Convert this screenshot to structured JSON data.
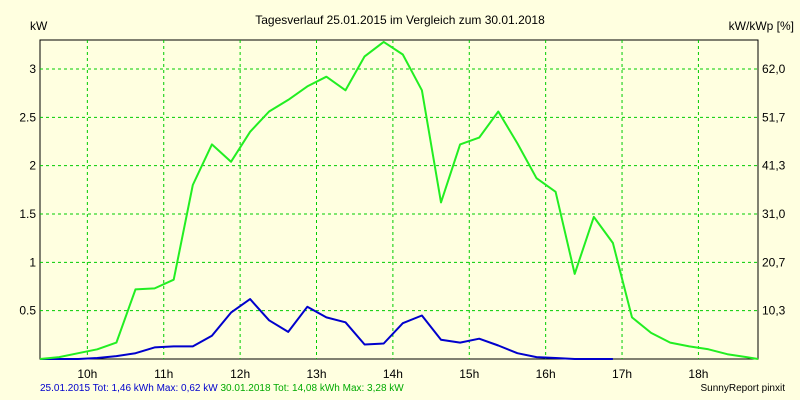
{
  "chart_data": {
    "type": "line",
    "title": "Tagesverlauf 25.01.2015 im Vergleich zum 30.01.2018",
    "ylabel_left": "kW",
    "ylabel_right": "kW/kWp [%]",
    "x_ticks": [
      "10h",
      "11h",
      "12h",
      "13h",
      "14h",
      "15h",
      "16h",
      "17h",
      "18h"
    ],
    "x_tick_values": [
      10,
      11,
      12,
      13,
      14,
      15,
      16,
      17,
      18
    ],
    "xlim": [
      9.38,
      18.78
    ],
    "ylim": [
      0,
      3.3
    ],
    "y_ticks_left": [
      "0.5",
      "1",
      "1.5",
      "2",
      "2.5",
      "3"
    ],
    "y_tick_values_left": [
      0.5,
      1,
      1.5,
      2,
      2.5,
      3
    ],
    "y_ticks_right": [
      "10,3",
      "20,7",
      "31,0",
      "41,3",
      "51,7",
      "62,0"
    ],
    "grid": true,
    "background_color": "#ffffe0",
    "grid_color": "#00cc00",
    "series": [
      {
        "color": "#0000cc",
        "x": [
          9.38,
          9.63,
          9.88,
          10.13,
          10.38,
          10.63,
          10.88,
          11.13,
          11.38,
          11.63,
          11.88,
          12.13,
          12.38,
          12.63,
          12.88,
          13.13,
          13.38,
          13.63,
          13.88,
          14.13,
          14.38,
          14.63,
          14.88,
          15.13,
          15.38,
          15.63,
          15.88,
          16.13,
          16.38,
          16.63,
          16.88
        ],
        "y": [
          0,
          0,
          0,
          0.01,
          0.03,
          0.06,
          0.12,
          0.13,
          0.13,
          0.24,
          0.48,
          0.62,
          0.4,
          0.28,
          0.54,
          0.43,
          0.38,
          0.15,
          0.16,
          0.37,
          0.45,
          0.2,
          0.17,
          0.21,
          0.14,
          0.06,
          0.02,
          0.01,
          0,
          0,
          0
        ]
      },
      {
        "color": "#22ee22",
        "x": [
          9.38,
          9.63,
          9.88,
          10.13,
          10.38,
          10.63,
          10.88,
          11.13,
          11.38,
          11.63,
          11.88,
          12.13,
          12.38,
          12.63,
          12.88,
          13.13,
          13.38,
          13.63,
          13.88,
          14.13,
          14.38,
          14.63,
          14.88,
          15.13,
          15.38,
          15.63,
          15.88,
          16.13,
          16.38,
          16.63,
          16.88,
          17.13,
          17.38,
          17.63,
          17.88,
          18.13,
          18.38,
          18.63,
          18.78
        ],
        "y": [
          0,
          0.02,
          0.06,
          0.1,
          0.17,
          0.72,
          0.73,
          0.82,
          1.8,
          2.22,
          2.04,
          2.35,
          2.56,
          2.68,
          2.82,
          2.92,
          2.78,
          3.13,
          3.28,
          3.15,
          2.78,
          1.62,
          2.22,
          2.29,
          2.56,
          2.23,
          1.87,
          1.73,
          0.88,
          1.47,
          1.2,
          0.43,
          0.27,
          0.17,
          0.13,
          0.1,
          0.05,
          0.02,
          0
        ]
      }
    ]
  },
  "footer": {
    "series1_summary": "25.01.2015 Tot: 1,46 kWh Max: 0,62 kW",
    "series2_summary": "30.01.2018 Tot: 14,08 kWh Max: 3,28 kW",
    "credit": "SunnyReport pinxit"
  }
}
